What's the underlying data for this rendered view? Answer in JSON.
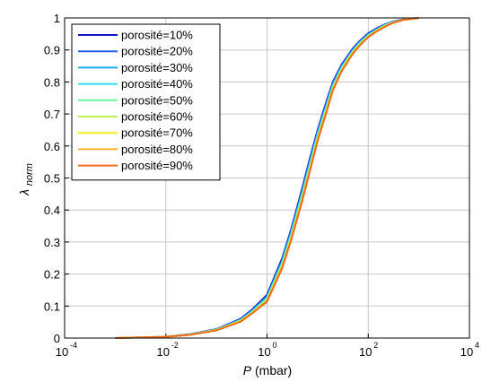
{
  "chart_data": {
    "type": "line",
    "xscale": "log",
    "xlim": [
      0.0001,
      10000
    ],
    "ylim": [
      0,
      1
    ],
    "grid": true,
    "legend_position": "top-left",
    "xlabel": {
      "symbol": "P",
      "unit": "(mbar)"
    },
    "ylabel": {
      "symbol": "λ",
      "subscript": "norm"
    },
    "xticks": [
      {
        "base": "10",
        "exp": "-4"
      },
      {
        "base": "10",
        "exp": "-2"
      },
      {
        "base": "10",
        "exp": "0"
      },
      {
        "base": "10",
        "exp": "2"
      },
      {
        "base": "10",
        "exp": "4"
      }
    ],
    "yticks": [
      "0",
      "0.1",
      "0.2",
      "0.3",
      "0.4",
      "0.5",
      "0.6",
      "0.7",
      "0.8",
      "0.9",
      "1"
    ],
    "x": [
      0.001,
      0.01,
      0.03,
      0.1,
      0.3,
      0.5,
      1,
      2,
      3,
      5,
      7,
      10,
      15,
      20,
      30,
      50,
      70,
      100,
      150,
      200,
      300,
      500,
      1000
    ],
    "series": [
      {
        "name": "porosité=10%",
        "color": "#0d10cc",
        "values": [
          0.0,
          0.004,
          0.012,
          0.028,
          0.06,
          0.088,
          0.135,
          0.25,
          0.34,
          0.47,
          0.56,
          0.65,
          0.74,
          0.8,
          0.855,
          0.905,
          0.93,
          0.952,
          0.968,
          0.978,
          0.988,
          0.996,
          1.0
        ]
      },
      {
        "name": "porosité=20%",
        "color": "#1f5fe0",
        "values": [
          0.0,
          0.004,
          0.012,
          0.027,
          0.058,
          0.086,
          0.131,
          0.245,
          0.335,
          0.464,
          0.554,
          0.645,
          0.735,
          0.796,
          0.852,
          0.902,
          0.928,
          0.95,
          0.966,
          0.977,
          0.987,
          0.995,
          1.0
        ]
      },
      {
        "name": "porosité=30%",
        "color": "#1ca8f0",
        "values": [
          0.0,
          0.004,
          0.011,
          0.027,
          0.057,
          0.084,
          0.128,
          0.24,
          0.33,
          0.458,
          0.548,
          0.64,
          0.73,
          0.792,
          0.849,
          0.9,
          0.926,
          0.948,
          0.965,
          0.976,
          0.987,
          0.995,
          1.0
        ]
      },
      {
        "name": "porosité=40%",
        "color": "#35e0f0",
        "values": [
          0.0,
          0.004,
          0.011,
          0.026,
          0.056,
          0.082,
          0.125,
          0.236,
          0.325,
          0.452,
          0.542,
          0.635,
          0.725,
          0.788,
          0.846,
          0.898,
          0.924,
          0.946,
          0.964,
          0.975,
          0.986,
          0.995,
          1.0
        ]
      },
      {
        "name": "porosité=50%",
        "color": "#6ff0a8",
        "values": [
          0.0,
          0.004,
          0.011,
          0.026,
          0.055,
          0.08,
          0.122,
          0.232,
          0.32,
          0.446,
          0.536,
          0.63,
          0.72,
          0.784,
          0.843,
          0.896,
          0.922,
          0.944,
          0.963,
          0.974,
          0.986,
          0.995,
          1.0
        ]
      },
      {
        "name": "porosité=60%",
        "color": "#b8f060",
        "values": [
          0.0,
          0.004,
          0.011,
          0.025,
          0.054,
          0.079,
          0.12,
          0.228,
          0.316,
          0.441,
          0.531,
          0.626,
          0.716,
          0.781,
          0.84,
          0.894,
          0.92,
          0.943,
          0.962,
          0.973,
          0.985,
          0.994,
          1.0
        ]
      },
      {
        "name": "porosité=70%",
        "color": "#f0f020",
        "values": [
          0.0,
          0.004,
          0.01,
          0.025,
          0.053,
          0.078,
          0.118,
          0.225,
          0.312,
          0.437,
          0.527,
          0.622,
          0.712,
          0.778,
          0.838,
          0.892,
          0.918,
          0.942,
          0.961,
          0.972,
          0.985,
          0.994,
          1.0
        ]
      },
      {
        "name": "porosité=80%",
        "color": "#f7b020",
        "values": [
          0.0,
          0.004,
          0.01,
          0.024,
          0.052,
          0.077,
          0.116,
          0.222,
          0.309,
          0.433,
          0.523,
          0.619,
          0.709,
          0.776,
          0.836,
          0.89,
          0.917,
          0.941,
          0.96,
          0.971,
          0.984,
          0.994,
          1.0
        ]
      },
      {
        "name": "porosité=90%",
        "color": "#f26a1b",
        "values": [
          0.0,
          0.004,
          0.01,
          0.024,
          0.051,
          0.076,
          0.114,
          0.219,
          0.306,
          0.43,
          0.52,
          0.616,
          0.706,
          0.774,
          0.834,
          0.889,
          0.916,
          0.94,
          0.959,
          0.97,
          0.984,
          0.994,
          1.0
        ]
      }
    ]
  }
}
